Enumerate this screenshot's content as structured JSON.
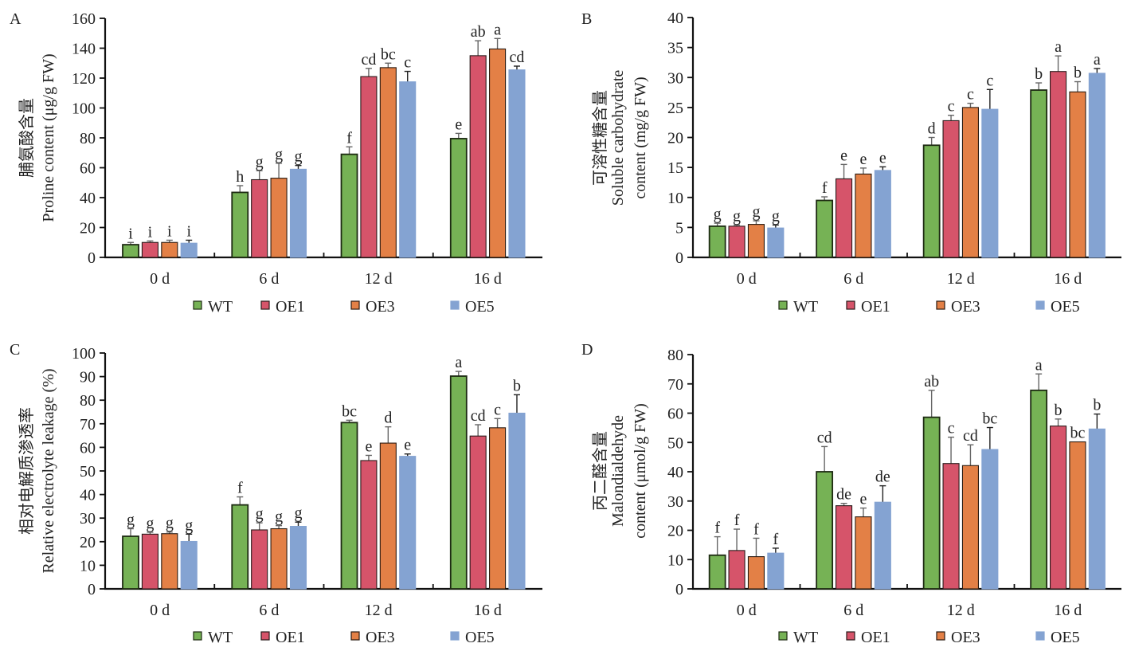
{
  "figure": {
    "legend": {
      "entries": [
        "WT",
        "OE1",
        "OE3",
        "OE5"
      ],
      "colors": [
        "#76b255",
        "#d6546a",
        "#e38046",
        "#84a3d2"
      ]
    }
  },
  "chart_data": [
    {
      "panel": "A",
      "type": "bar",
      "title": "",
      "xlabel": "",
      "ylabel_cn": "脯氨酸含量",
      "ylabel_lines": [
        "Proline content (μg/g FW)"
      ],
      "ylim": [
        0,
        160
      ],
      "yticks": [
        0,
        20,
        40,
        60,
        80,
        100,
        120,
        140,
        160
      ],
      "categories": [
        "0 d",
        "6 d",
        "12 d",
        "16 d"
      ],
      "legend_position": "bottom",
      "grid": false,
      "series": [
        {
          "name": "WT",
          "values": [
            8.5,
            43.5,
            69,
            79.5
          ],
          "errors": [
            1.5,
            4.5,
            5,
            3.5
          ],
          "letters": [
            "i",
            "h",
            "f",
            "e"
          ]
        },
        {
          "name": "OE1",
          "values": [
            10,
            52,
            121,
            135
          ],
          "errors": [
            1,
            6,
            5.5,
            10
          ],
          "letters": [
            "i",
            "g",
            "cd",
            "ab"
          ]
        },
        {
          "name": "OE3",
          "values": [
            10,
            53,
            127,
            139.5
          ],
          "errors": [
            1.5,
            10,
            3,
            7
          ],
          "letters": [
            "i",
            "g",
            "bc",
            "a"
          ]
        },
        {
          "name": "OE5",
          "values": [
            9.5,
            59,
            117.5,
            125.5
          ],
          "errors": [
            2,
            2.5,
            7,
            2.5
          ],
          "letters": [
            "i",
            "g",
            "c",
            "cd"
          ]
        }
      ]
    },
    {
      "panel": "B",
      "type": "bar",
      "title": "",
      "xlabel": "",
      "ylabel_cn": "可溶性糖含量",
      "ylabel_lines": [
        "Soluble carbohydrate",
        "content (mg/g FW)"
      ],
      "ylim": [
        0,
        40
      ],
      "yticks": [
        0,
        5,
        10,
        15,
        20,
        25,
        30,
        35,
        40
      ],
      "categories": [
        "0 d",
        "6 d",
        "12 d",
        "16 d"
      ],
      "legend_position": "bottom",
      "grid": false,
      "series": [
        {
          "name": "WT",
          "values": [
            5.2,
            9.5,
            18.7,
            27.9
          ],
          "errors": [
            0.5,
            0.6,
            1.3,
            1.2
          ],
          "letters": [
            "g",
            "f",
            "d",
            "b"
          ]
        },
        {
          "name": "OE1",
          "values": [
            5.2,
            13.1,
            22.8,
            31.0
          ],
          "errors": [
            0.2,
            2.4,
            0.9,
            2.6
          ],
          "letters": [
            "g",
            "e",
            "c",
            "a"
          ]
        },
        {
          "name": "OE3",
          "values": [
            5.5,
            13.9,
            25.0,
            27.6
          ],
          "errors": [
            0.6,
            1.0,
            0.7,
            1.7
          ],
          "letters": [
            "g",
            "e",
            "c",
            "b"
          ]
        },
        {
          "name": "OE5",
          "values": [
            4.9,
            14.5,
            24.7,
            30.7
          ],
          "errors": [
            0.5,
            0.6,
            3.3,
            0.8
          ],
          "letters": [
            "g",
            "e",
            "c",
            "a"
          ]
        }
      ]
    },
    {
      "panel": "C",
      "type": "bar",
      "title": "",
      "xlabel": "",
      "ylabel_cn": "相对电解质渗透率",
      "ylabel_lines": [
        "Relative electrolyte leakage (%)"
      ],
      "ylim": [
        0,
        100
      ],
      "yticks": [
        0,
        10,
        20,
        30,
        40,
        50,
        60,
        70,
        80,
        90,
        100
      ],
      "categories": [
        "0 d",
        "6 d",
        "12 d",
        "16 d"
      ],
      "legend_position": "bottom",
      "grid": false,
      "series": [
        {
          "name": "WT",
          "values": [
            22.3,
            35.6,
            70.5,
            90.2
          ],
          "errors": [
            3.2,
            3.4,
            1.0,
            2.0
          ],
          "letters": [
            "g",
            "f",
            "bc",
            "a"
          ]
        },
        {
          "name": "OE1",
          "values": [
            23.2,
            25.0,
            54.4,
            64.8
          ],
          "errors": [
            0.8,
            3.0,
            2.2,
            4.8
          ],
          "letters": [
            "g",
            "g",
            "e",
            "cd"
          ]
        },
        {
          "name": "OE3",
          "values": [
            23.4,
            25.5,
            61.8,
            68.3
          ],
          "errors": [
            0.7,
            1.3,
            6.9,
            3.9
          ],
          "letters": [
            "g",
            "g",
            "d",
            "c"
          ]
        },
        {
          "name": "OE5",
          "values": [
            20.1,
            26.5,
            56.2,
            74.5
          ],
          "errors": [
            3.1,
            1.8,
            1.0,
            7.8
          ],
          "letters": [
            "g",
            "g",
            "e",
            "b"
          ]
        }
      ]
    },
    {
      "panel": "D",
      "type": "bar",
      "title": "",
      "xlabel": "",
      "ylabel_cn": "丙二醛含量",
      "ylabel_lines": [
        "Malondialdehyde",
        "content (μmol/g FW)"
      ],
      "ylim": [
        0,
        80
      ],
      "yticks": [
        0,
        10,
        20,
        30,
        40,
        50,
        60,
        70,
        80
      ],
      "categories": [
        "0 d",
        "6 d",
        "12 d",
        "16 d"
      ],
      "legend_position": "bottom",
      "grid": false,
      "series": [
        {
          "name": "WT",
          "values": [
            11.5,
            40.0,
            58.6,
            67.8
          ],
          "errors": [
            6.3,
            8.6,
            9.2,
            5.6
          ],
          "letters": [
            "f",
            "cd",
            "ab",
            "a"
          ]
        },
        {
          "name": "OE1",
          "values": [
            13.1,
            28.4,
            42.8,
            55.6
          ],
          "errors": [
            7.3,
            0.8,
            9.0,
            2.4
          ],
          "letters": [
            "f",
            "de",
            "c",
            "b"
          ]
        },
        {
          "name": "OE3",
          "values": [
            11.0,
            24.6,
            42.1,
            50.2
          ],
          "errors": [
            6.3,
            3.0,
            7.1,
            0.0
          ],
          "letters": [
            "f",
            "e",
            "cd",
            "bc"
          ]
        },
        {
          "name": "OE5",
          "values": [
            12.2,
            29.6,
            47.6,
            54.6
          ],
          "errors": [
            1.7,
            5.6,
            7.5,
            5.1
          ],
          "letters": [
            "f",
            "de",
            "bc",
            "b"
          ]
        }
      ]
    }
  ]
}
